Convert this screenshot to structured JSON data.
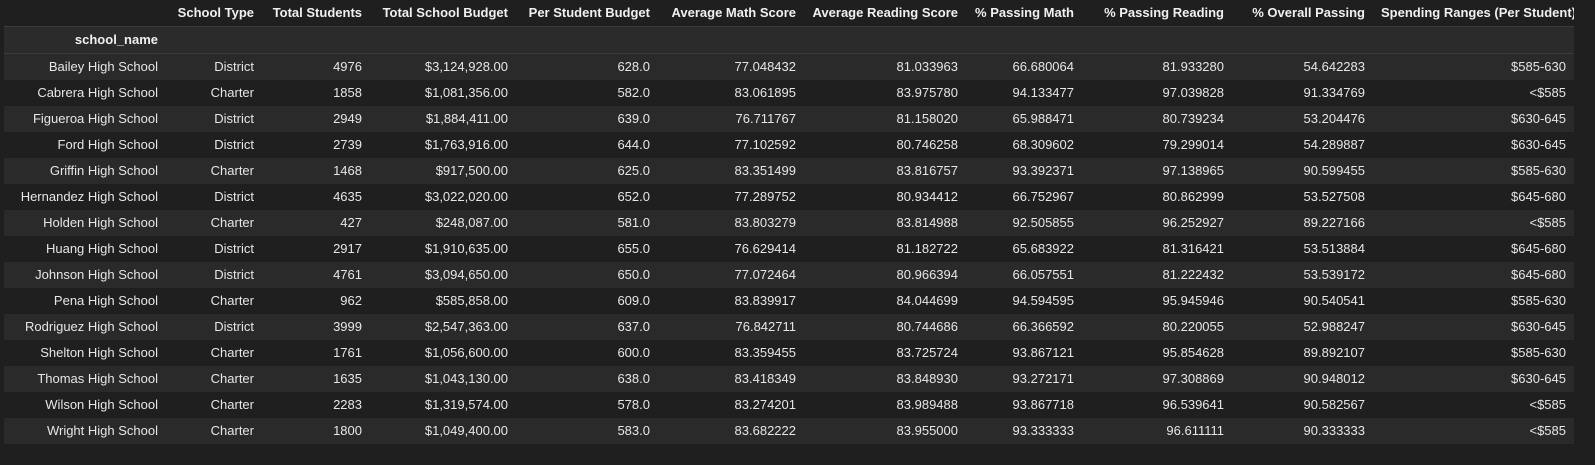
{
  "table": {
    "index_name": "school_name",
    "columns": [
      "School Type",
      "Total Students",
      "Total School Budget",
      "Per Student Budget",
      "Average Math Score",
      "Average Reading Score",
      "% Passing Math",
      "% Passing Reading",
      "% Overall Passing",
      "Spending Ranges (Per Student)"
    ],
    "rows": [
      [
        "Bailey High School",
        "District",
        "4976",
        "$3,124,928.00",
        "628.0",
        "77.048432",
        "81.033963",
        "66.680064",
        "81.933280",
        "54.642283",
        "$585-630"
      ],
      [
        "Cabrera High School",
        "Charter",
        "1858",
        "$1,081,356.00",
        "582.0",
        "83.061895",
        "83.975780",
        "94.133477",
        "97.039828",
        "91.334769",
        "<$585"
      ],
      [
        "Figueroa High School",
        "District",
        "2949",
        "$1,884,411.00",
        "639.0",
        "76.711767",
        "81.158020",
        "65.988471",
        "80.739234",
        "53.204476",
        "$630-645"
      ],
      [
        "Ford High School",
        "District",
        "2739",
        "$1,763,916.00",
        "644.0",
        "77.102592",
        "80.746258",
        "68.309602",
        "79.299014",
        "54.289887",
        "$630-645"
      ],
      [
        "Griffin High School",
        "Charter",
        "1468",
        "$917,500.00",
        "625.0",
        "83.351499",
        "83.816757",
        "93.392371",
        "97.138965",
        "90.599455",
        "$585-630"
      ],
      [
        "Hernandez High School",
        "District",
        "4635",
        "$3,022,020.00",
        "652.0",
        "77.289752",
        "80.934412",
        "66.752967",
        "80.862999",
        "53.527508",
        "$645-680"
      ],
      [
        "Holden High School",
        "Charter",
        "427",
        "$248,087.00",
        "581.0",
        "83.803279",
        "83.814988",
        "92.505855",
        "96.252927",
        "89.227166",
        "<$585"
      ],
      [
        "Huang High School",
        "District",
        "2917",
        "$1,910,635.00",
        "655.0",
        "76.629414",
        "81.182722",
        "65.683922",
        "81.316421",
        "53.513884",
        "$645-680"
      ],
      [
        "Johnson High School",
        "District",
        "4761",
        "$3,094,650.00",
        "650.0",
        "77.072464",
        "80.966394",
        "66.057551",
        "81.222432",
        "53.539172",
        "$645-680"
      ],
      [
        "Pena High School",
        "Charter",
        "962",
        "$585,858.00",
        "609.0",
        "83.839917",
        "84.044699",
        "94.594595",
        "95.945946",
        "90.540541",
        "$585-630"
      ],
      [
        "Rodriguez High School",
        "District",
        "3999",
        "$2,547,363.00",
        "637.0",
        "76.842711",
        "80.744686",
        "66.366592",
        "80.220055",
        "52.988247",
        "$630-645"
      ],
      [
        "Shelton High School",
        "Charter",
        "1761",
        "$1,056,600.00",
        "600.0",
        "83.359455",
        "83.725724",
        "93.867121",
        "95.854628",
        "89.892107",
        "$585-630"
      ],
      [
        "Thomas High School",
        "Charter",
        "1635",
        "$1,043,130.00",
        "638.0",
        "83.418349",
        "83.848930",
        "93.272171",
        "97.308869",
        "90.948012",
        "$630-645"
      ],
      [
        "Wilson High School",
        "Charter",
        "2283",
        "$1,319,574.00",
        "578.0",
        "83.274201",
        "83.989488",
        "93.867718",
        "96.539641",
        "90.582567",
        "<$585"
      ],
      [
        "Wright High School",
        "Charter",
        "1800",
        "$1,049,400.00",
        "583.0",
        "83.682222",
        "83.955000",
        "93.333333",
        "96.611111",
        "90.333333",
        "<$585"
      ]
    ]
  }
}
